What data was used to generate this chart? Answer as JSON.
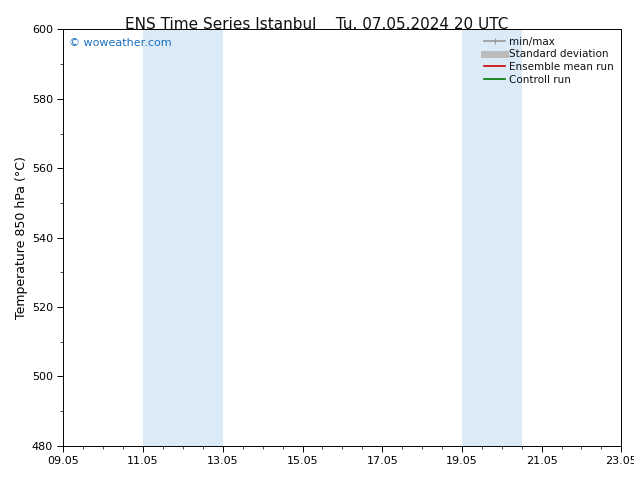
{
  "title_left": "ENS Time Series Istanbul",
  "title_right": "Tu. 07.05.2024 20 UTC",
  "ylabel": "Temperature 850 hPa (°C)",
  "ylim": [
    480,
    600
  ],
  "yticks": [
    480,
    500,
    520,
    540,
    560,
    580,
    600
  ],
  "xtick_labels": [
    "09.05",
    "11.05",
    "13.05",
    "15.05",
    "17.05",
    "19.05",
    "21.05",
    "23.05"
  ],
  "xtick_positions": [
    0,
    2,
    4,
    6,
    8,
    10,
    12,
    14
  ],
  "xlim": [
    0,
    14
  ],
  "shaded_regions": [
    {
      "xstart": 2.0,
      "xend": 4.0
    },
    {
      "xstart": 10.0,
      "xend": 11.5
    }
  ],
  "shaded_color": "#daeaf7",
  "background_color": "#ffffff",
  "watermark_text": "© woweather.com",
  "watermark_color": "#1a6fbb",
  "legend_entries": [
    {
      "label": "min/max",
      "color": "#999999",
      "lw": 1.2,
      "style": "line_with_caps"
    },
    {
      "label": "Standard deviation",
      "color": "#bbbbbb",
      "lw": 5,
      "style": "thick"
    },
    {
      "label": "Ensemble mean run",
      "color": "#cc0000",
      "lw": 1.2,
      "style": "line"
    },
    {
      "label": "Controll run",
      "color": "#007700",
      "lw": 1.2,
      "style": "line"
    }
  ],
  "spine_color": "#000000",
  "tick_color": "#000000",
  "title_fontsize": 11,
  "ylabel_fontsize": 9,
  "tick_fontsize": 8,
  "legend_fontsize": 7.5
}
